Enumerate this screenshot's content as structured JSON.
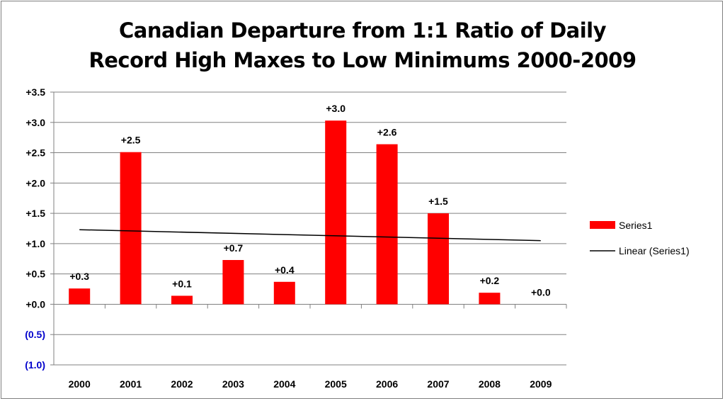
{
  "chart_data": {
    "type": "bar",
    "title_line1": "Canadian Departure from 1:1 Ratio of Daily",
    "title_line2": "Record High Maxes to Low Minimums 2000-2009",
    "categories": [
      "2000",
      "2001",
      "2002",
      "2003",
      "2004",
      "2005",
      "2006",
      "2007",
      "2008",
      "2009"
    ],
    "series": [
      {
        "name": "Series1",
        "values": [
          0.26,
          2.51,
          0.14,
          0.73,
          0.37,
          3.03,
          2.64,
          1.5,
          0.19,
          0.0
        ],
        "labels": [
          "+0.3",
          "+2.5",
          "+0.1",
          "+0.7",
          "+0.4",
          "+3.0",
          "+2.6",
          "+1.5",
          "+0.2",
          "+0.0"
        ],
        "color": "#ff0000"
      }
    ],
    "trendline": {
      "name": "Linear (Series1)",
      "start": 1.23,
      "end": 1.05,
      "color": "#000000"
    },
    "ylim": [
      -1.0,
      3.5
    ],
    "yticks": [
      3.5,
      3.0,
      2.5,
      2.0,
      1.5,
      1.0,
      0.5,
      0.0,
      -0.5,
      -1.0
    ],
    "ytick_labels": [
      "+3.5",
      "+3.0",
      "+2.5",
      "+2.0",
      "+1.5",
      "+1.0",
      "+0.5",
      "+0.0",
      "(0.5)",
      "(1.0)"
    ],
    "negative_tick_color": "#0000cc",
    "gridlines": true,
    "legend_position": "right",
    "legend": [
      "Series1",
      "Linear (Series1)"
    ]
  }
}
